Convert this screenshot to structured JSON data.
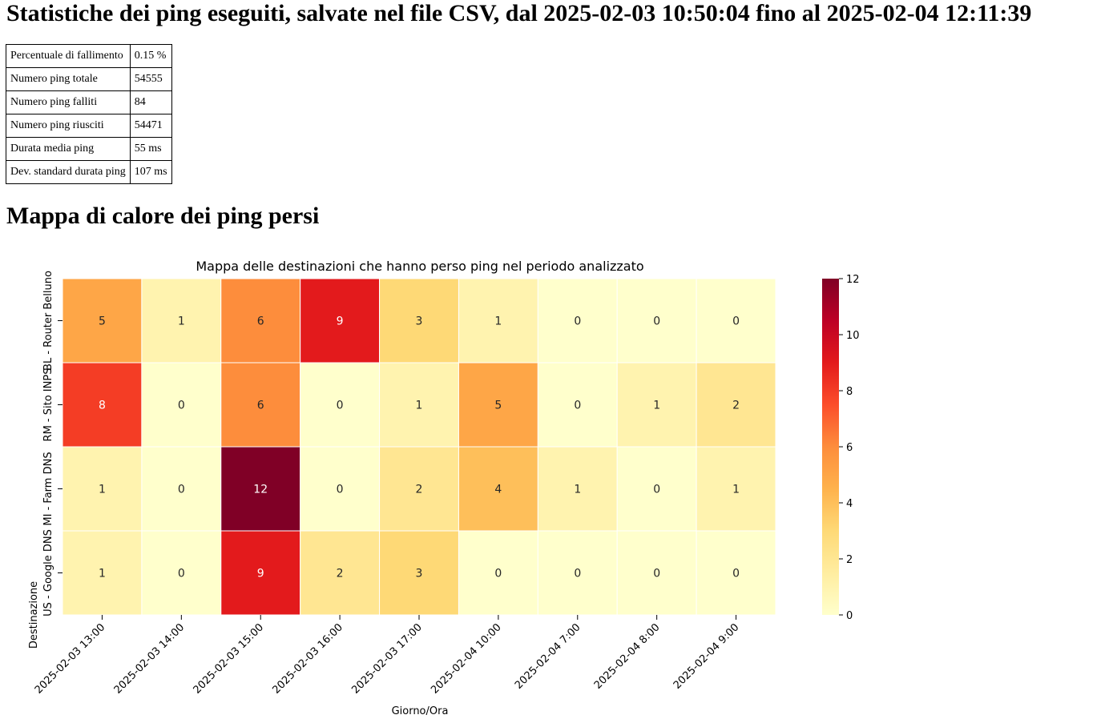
{
  "page": {
    "title": "Statistiche dei ping eseguiti, salvate nel file CSV, dal 2025-02-03 10:50:04 fino al 2025-02-04 12:11:39",
    "heatmap_heading": "Mappa di calore dei ping persi"
  },
  "stats": [
    {
      "label": "Percentuale di fallimento",
      "value": "0.15 %"
    },
    {
      "label": "Numero ping totale",
      "value": "54555"
    },
    {
      "label": "Numero ping falliti",
      "value": "84"
    },
    {
      "label": "Numero ping riusciti",
      "value": "54471"
    },
    {
      "label": "Durata media ping",
      "value": "55 ms"
    },
    {
      "label": "Dev. standard durata ping",
      "value": "107 ms"
    }
  ],
  "chart_data": {
    "type": "heatmap",
    "title": "Mappa delle destinazioni che hanno perso ping nel periodo analizzato",
    "xlabel": "Giorno/Ora",
    "ylabel": "Destinazione",
    "x": [
      "2025-02-03 13:00",
      "2025-02-03 14:00",
      "2025-02-03 15:00",
      "2025-02-03 16:00",
      "2025-02-03 17:00",
      "2025-02-04 10:00",
      "2025-02-04 7:00",
      "2025-02-04 8:00",
      "2025-02-04 9:00"
    ],
    "y": [
      "BL - Router Belluno",
      "RM - Sito INPS",
      "MI - Farm DNS",
      "US - Google DNS"
    ],
    "values": [
      [
        5,
        1,
        6,
        9,
        3,
        1,
        0,
        0,
        0
      ],
      [
        8,
        0,
        6,
        0,
        1,
        5,
        0,
        1,
        2
      ],
      [
        1,
        0,
        12,
        0,
        2,
        4,
        1,
        0,
        1
      ],
      [
        1,
        0,
        9,
        2,
        3,
        0,
        0,
        0,
        0
      ]
    ],
    "colorbar": {
      "min": 0,
      "max": 12,
      "ticks": [
        0,
        2,
        4,
        6,
        8,
        10,
        12
      ],
      "colormap": "YlOrRd"
    },
    "colors": [
      "#ffffcc",
      "#ffeda0",
      "#fed976",
      "#feb24c",
      "#fd8d3c",
      "#fc4e2a",
      "#e31a1c",
      "#bd0026",
      "#800026"
    ],
    "grid": false
  }
}
